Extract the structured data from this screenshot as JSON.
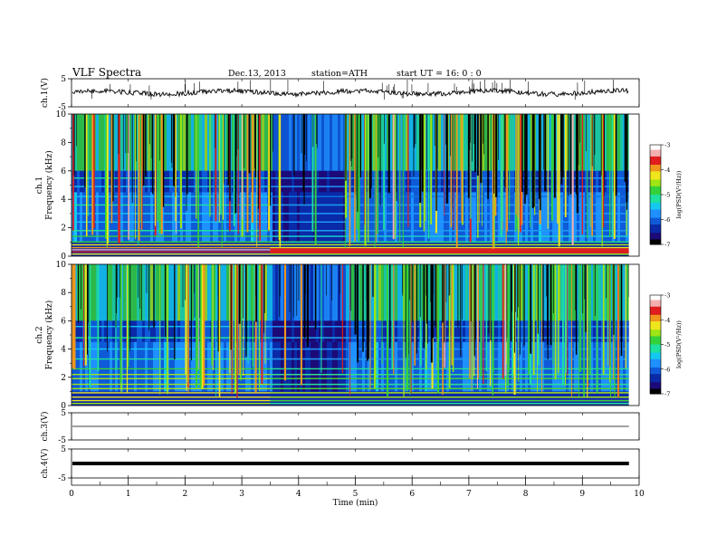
{
  "header": {
    "title": "VLF  Spectra",
    "date": "Dec.13, 2013",
    "station": "station=ATH",
    "start": "start  UT  =    16: 0  : 0"
  },
  "colors": {
    "scale": [
      "#000000",
      "#1c0a78",
      "#0a2aa8",
      "#0e5ad8",
      "#1e90ff",
      "#14c8f0",
      "#1ee0a0",
      "#34d23a",
      "#9ee614",
      "#f0e61e",
      "#f0961e",
      "#e01e1e",
      "#f4b0b0",
      "#ffffff"
    ],
    "trace": "#000000",
    "frame": "#000000"
  },
  "chart_data": [
    {
      "type": "line",
      "name": "ch.1 waveform",
      "ylabel": "ch.1(V)",
      "ylim": [
        -5,
        5
      ],
      "yticks": [
        "5",
        "-5"
      ],
      "xlim": [
        0,
        10
      ],
      "x_end_data": 9.82,
      "mean": 0.1,
      "amplitude": "±1.2 V with spikes up to 5 V"
    },
    {
      "type": "heatmap",
      "name": "ch.1 spectrogram",
      "ylabel": "ch.1\nFrequency  (kHz)",
      "ylim": [
        0,
        10
      ],
      "yticks": [
        "0",
        "2",
        "4",
        "6",
        "8",
        "10"
      ],
      "xlim": [
        0,
        10
      ],
      "x_end_data": 9.82,
      "colorbar": {
        "label": "log(PSD(V²/Hz))",
        "range": [
          -7,
          -3
        ],
        "ticks": [
          "-3",
          "-4",
          "-5",
          "-6",
          "-7"
        ]
      },
      "quiet_interval_min": [
        3.5,
        4.8
      ],
      "note": "broadband vertical impulses (sferics) throughout; strong narrowband lines below 1 kHz"
    },
    {
      "type": "heatmap",
      "name": "ch.2 spectrogram",
      "ylabel": "ch.2\nFrequency  (kHz)",
      "ylim": [
        0,
        10
      ],
      "yticks": [
        "0",
        "2",
        "4",
        "6",
        "8",
        "10"
      ],
      "xlim": [
        0,
        10
      ],
      "x_end_data": 9.82,
      "colorbar": {
        "label": "log(PSD(V²/Hz))",
        "range": [
          -7,
          -3
        ],
        "ticks": [
          "-3",
          "-4",
          "-5",
          "-6",
          "-7"
        ]
      },
      "quiet_interval_min": [
        3.5,
        4.8
      ]
    },
    {
      "type": "line",
      "name": "ch.3 waveform",
      "ylabel": "ch.3(V)",
      "ylim": [
        -5,
        5
      ],
      "yticks": [
        "5",
        "-5"
      ],
      "xlim": [
        0,
        10
      ],
      "x_end_data": 9.82,
      "mean": 0.0,
      "amplitude": "near-flat"
    },
    {
      "type": "line",
      "name": "ch.4 waveform",
      "ylabel": "ch.4(V)",
      "ylim": [
        -5,
        5
      ],
      "yticks": [
        "5",
        "-5"
      ],
      "xlim": [
        0,
        10
      ],
      "x_end_data": 9.82,
      "mean": 0.0,
      "amplitude": "thick flat band"
    }
  ],
  "xaxis": {
    "label": "Time  (min)",
    "ticks": [
      "0",
      "1",
      "2",
      "3",
      "4",
      "5",
      "6",
      "7",
      "8",
      "9",
      "10"
    ]
  }
}
